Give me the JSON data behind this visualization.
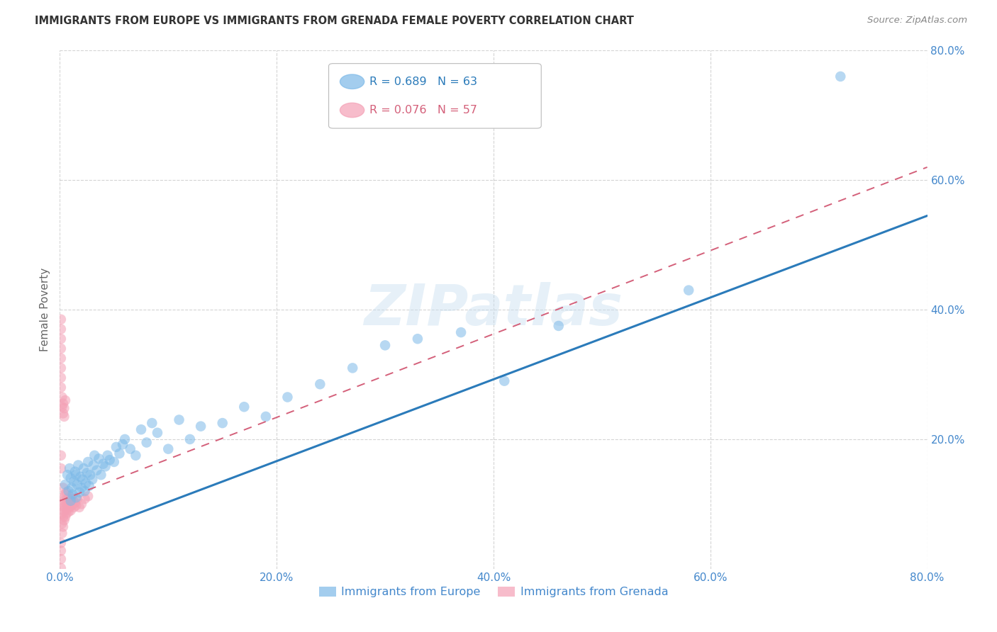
{
  "title": "IMMIGRANTS FROM EUROPE VS IMMIGRANTS FROM GRENADA FEMALE POVERTY CORRELATION CHART",
  "source": "Source: ZipAtlas.com",
  "ylabel": "Female Poverty",
  "xlim": [
    0.0,
    0.8
  ],
  "ylim": [
    0.0,
    0.8
  ],
  "xticks": [
    0.0,
    0.2,
    0.4,
    0.6,
    0.8
  ],
  "yticks": [
    0.2,
    0.4,
    0.6,
    0.8
  ],
  "xticklabels": [
    "0.0%",
    "20.0%",
    "40.0%",
    "60.0%",
    "80.0%"
  ],
  "right_yticklabels": [
    "20.0%",
    "40.0%",
    "60.0%",
    "80.0%"
  ],
  "right_yticks": [
    0.2,
    0.4,
    0.6,
    0.8
  ],
  "blue_color": "#7cb9e8",
  "pink_color": "#f4a0b5",
  "blue_line_color": "#2b7bba",
  "pink_line_color": "#d4607a",
  "grid_color": "#d0d0d0",
  "background_color": "#ffffff",
  "tick_label_color": "#4488cc",
  "title_color": "#333333",
  "legend_R_blue": "0.689",
  "legend_N_blue": "63",
  "legend_R_pink": "0.076",
  "legend_N_pink": "57",
  "legend_label_blue": "Immigrants from Europe",
  "legend_label_pink": "Immigrants from Grenada",
  "blue_scatter_x": [
    0.005,
    0.007,
    0.008,
    0.009,
    0.01,
    0.01,
    0.011,
    0.012,
    0.013,
    0.014,
    0.015,
    0.015,
    0.016,
    0.017,
    0.018,
    0.019,
    0.02,
    0.021,
    0.022,
    0.023,
    0.024,
    0.025,
    0.026,
    0.027,
    0.028,
    0.03,
    0.031,
    0.032,
    0.034,
    0.036,
    0.038,
    0.04,
    0.042,
    0.044,
    0.046,
    0.05,
    0.052,
    0.055,
    0.058,
    0.06,
    0.065,
    0.07,
    0.075,
    0.08,
    0.085,
    0.09,
    0.1,
    0.11,
    0.12,
    0.13,
    0.15,
    0.17,
    0.19,
    0.21,
    0.24,
    0.27,
    0.3,
    0.33,
    0.37,
    0.41,
    0.46,
    0.58,
    0.72
  ],
  "blue_scatter_y": [
    0.13,
    0.145,
    0.12,
    0.155,
    0.105,
    0.14,
    0.125,
    0.115,
    0.135,
    0.15,
    0.11,
    0.145,
    0.13,
    0.16,
    0.118,
    0.142,
    0.125,
    0.138,
    0.155,
    0.12,
    0.132,
    0.148,
    0.165,
    0.128,
    0.145,
    0.138,
    0.16,
    0.175,
    0.152,
    0.17,
    0.145,
    0.162,
    0.158,
    0.175,
    0.168,
    0.165,
    0.188,
    0.178,
    0.192,
    0.2,
    0.185,
    0.175,
    0.215,
    0.195,
    0.225,
    0.21,
    0.185,
    0.23,
    0.2,
    0.22,
    0.225,
    0.25,
    0.235,
    0.265,
    0.285,
    0.31,
    0.345,
    0.355,
    0.365,
    0.29,
    0.375,
    0.43,
    0.76
  ],
  "pink_scatter_x": [
    0.001,
    0.001,
    0.001,
    0.001,
    0.002,
    0.002,
    0.002,
    0.002,
    0.003,
    0.003,
    0.003,
    0.003,
    0.003,
    0.004,
    0.004,
    0.004,
    0.005,
    0.005,
    0.005,
    0.006,
    0.006,
    0.006,
    0.007,
    0.007,
    0.008,
    0.008,
    0.009,
    0.009,
    0.01,
    0.01,
    0.011,
    0.012,
    0.013,
    0.014,
    0.015,
    0.016,
    0.018,
    0.02,
    0.023,
    0.026,
    0.001,
    0.001,
    0.001,
    0.001,
    0.001,
    0.002,
    0.002,
    0.003,
    0.003,
    0.004,
    0.004,
    0.005,
    0.001,
    0.001,
    0.001,
    0.001,
    0.001
  ],
  "pink_scatter_y": [
    0.001,
    0.015,
    0.028,
    0.04,
    0.055,
    0.07,
    0.085,
    0.1,
    0.065,
    0.08,
    0.095,
    0.11,
    0.125,
    0.075,
    0.09,
    0.105,
    0.08,
    0.095,
    0.115,
    0.085,
    0.1,
    0.118,
    0.092,
    0.108,
    0.088,
    0.105,
    0.095,
    0.112,
    0.09,
    0.108,
    0.098,
    0.105,
    0.095,
    0.102,
    0.098,
    0.108,
    0.095,
    0.1,
    0.108,
    0.112,
    0.28,
    0.295,
    0.31,
    0.325,
    0.34,
    0.25,
    0.265,
    0.24,
    0.255,
    0.235,
    0.248,
    0.26,
    0.355,
    0.37,
    0.385,
    0.155,
    0.175
  ],
  "blue_trendline_x": [
    0.0,
    0.8
  ],
  "blue_trendline_y": [
    0.04,
    0.545
  ],
  "pink_trendline_x": [
    0.0,
    0.8
  ],
  "pink_trendline_y": [
    0.105,
    0.62
  ],
  "watermark": "ZIPatlas"
}
